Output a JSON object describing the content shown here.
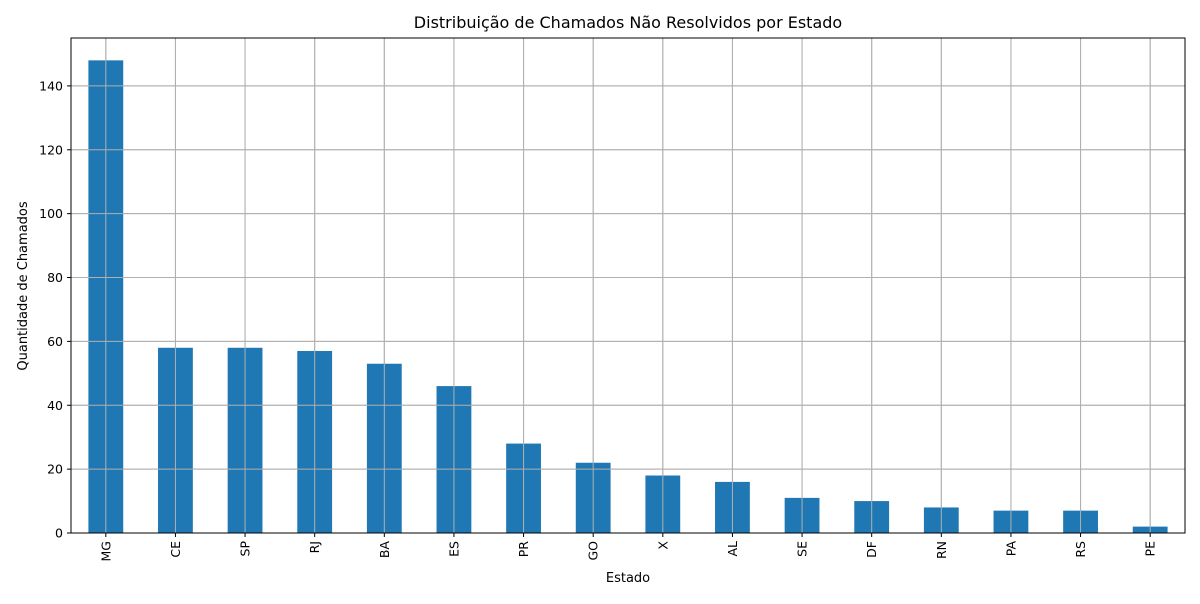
{
  "chart_data": {
    "type": "bar",
    "title": "Distribuição de Chamados Não Resolvidos por Estado",
    "xlabel": "Estado",
    "ylabel": "Quantidade de Chamados",
    "categories": [
      "MG",
      "CE",
      "SP",
      "RJ",
      "BA",
      "ES",
      "PR",
      "GO",
      "X",
      "AL",
      "SE",
      "DF",
      "RN",
      "PA",
      "RS",
      "PE"
    ],
    "values": [
      148,
      58,
      58,
      57,
      53,
      46,
      28,
      22,
      18,
      16,
      11,
      10,
      8,
      7,
      7,
      2
    ],
    "ylim": [
      0,
      155
    ],
    "yticks": [
      0,
      20,
      40,
      60,
      80,
      100,
      120,
      140
    ],
    "grid": true,
    "bar_color": "#1f77b4"
  }
}
